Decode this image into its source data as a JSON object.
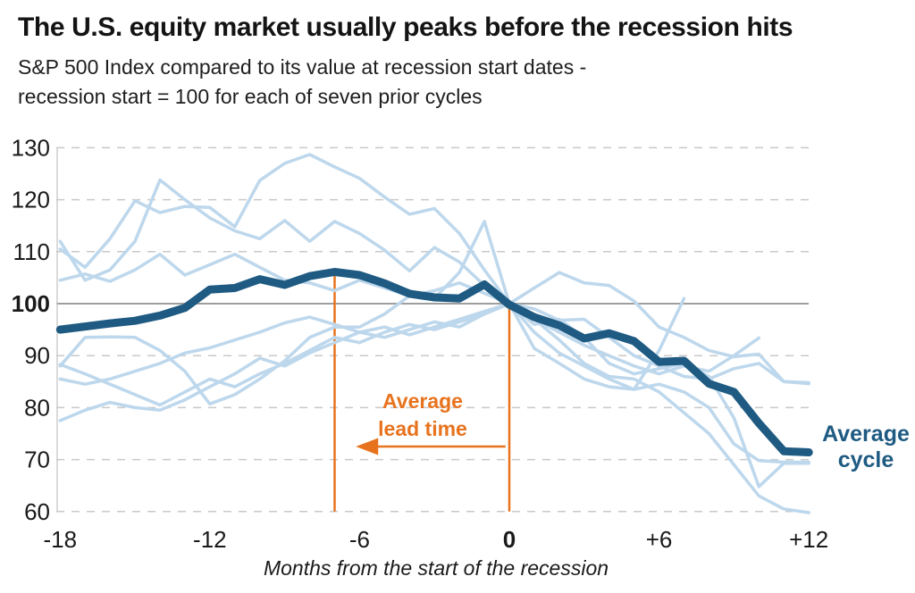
{
  "header": {
    "title": "The U.S. equity market usually peaks before the recession hits",
    "subtitle_line1": "S&P 500 Index compared to its value at recession start dates -",
    "subtitle_line2": "recession start = 100 for each of seven prior cycles"
  },
  "chart_data": {
    "type": "line",
    "x_axis_title": "Months from the start of the recession",
    "x_range": [
      -18,
      12
    ],
    "y_range": [
      60,
      130
    ],
    "grid": "dashed horizontal, solid reference line at 100",
    "legend_position": "inline right label",
    "reference_value": 100,
    "x_axis": {
      "ticks": [
        {
          "label": "-18",
          "value": -18,
          "bold": false
        },
        {
          "label": "-12",
          "value": -12,
          "bold": false
        },
        {
          "label": "-6",
          "value": -6,
          "bold": false
        },
        {
          "label": "0",
          "value": 0,
          "bold": true
        },
        {
          "label": "+6",
          "value": 6,
          "bold": false
        },
        {
          "label": "+12",
          "value": 12,
          "bold": false
        }
      ]
    },
    "y_axis": {
      "ticks": [
        {
          "label": "130",
          "value": 130,
          "bold": false
        },
        {
          "label": "120",
          "value": 120,
          "bold": false
        },
        {
          "label": "110",
          "value": 110,
          "bold": false
        },
        {
          "label": "100",
          "value": 100,
          "bold": true
        },
        {
          "label": "90",
          "value": 90,
          "bold": false
        },
        {
          "label": "80",
          "value": 80,
          "bold": false
        },
        {
          "label": "70",
          "value": 70,
          "bold": false
        },
        {
          "label": "60",
          "value": 60,
          "bold": false
        }
      ]
    },
    "series": [
      {
        "name": "cycle-1",
        "start_month": -18,
        "values": [
          110.5,
          107,
          112.5,
          119.8,
          117.5,
          118.7,
          118.5,
          114.8,
          123.7,
          127,
          128.7,
          126.3,
          124.1,
          120.5,
          117.2,
          118.3,
          113.5,
          106.5,
          100,
          97,
          93,
          88.5,
          86,
          85.5,
          83,
          79,
          75,
          69,
          63,
          60.5,
          59.8
        ]
      },
      {
        "name": "cycle-2",
        "start_month": -18,
        "values": [
          112,
          104.5,
          106.5,
          112,
          123.8,
          120,
          116.5,
          114,
          112.5,
          116,
          112,
          115.8,
          113.5,
          110.3,
          106.3,
          110.8,
          108,
          103.5,
          100,
          103,
          106,
          104,
          103.5,
          100.5,
          95.5,
          93.5,
          91,
          89.8,
          90.3,
          85,
          84.8
        ]
      },
      {
        "name": "cycle-3",
        "start_month": -18,
        "values": [
          104.5,
          105.7,
          104.3,
          106.5,
          109.5,
          105.5,
          107.5,
          109.5,
          107,
          104.5,
          104,
          102.5,
          104.5,
          103,
          101.5,
          102.5,
          104,
          102,
          100,
          99,
          96.8,
          97,
          93.5,
          90,
          88,
          86,
          85.5,
          87.5,
          88.5,
          85,
          84.6
        ]
      },
      {
        "name": "cycle-4",
        "start_month": -18,
        "values": [
          85.5,
          84.5,
          85.5,
          87,
          88.5,
          90.5,
          91.5,
          93,
          94.5,
          96.3,
          97.4,
          96,
          94.5,
          95.5,
          94,
          95.5,
          97,
          98.5,
          100,
          97,
          94.5,
          92,
          90,
          88,
          86.5,
          88,
          87,
          90,
          93.4
        ]
      },
      {
        "name": "cycle-5",
        "start_month": -18,
        "values": [
          88.3,
          86.5,
          84.5,
          82.5,
          80.5,
          83,
          85.5,
          84,
          86.5,
          88.5,
          91,
          93.5,
          92.5,
          94.5,
          96,
          95,
          96.5,
          98,
          100,
          94.5,
          90.5,
          88,
          85.5,
          83.5,
          84.5,
          83,
          80,
          73,
          69.8,
          69.5,
          69.5
        ]
      },
      {
        "name": "cycle-6",
        "start_month": -18,
        "values": [
          88,
          93.5,
          93.6,
          93.5,
          91,
          87,
          80.7,
          82.5,
          85.5,
          89,
          93.5,
          95.5,
          95.5,
          98,
          101.5,
          101,
          106,
          115.8,
          100,
          91.4,
          88.5,
          85.5,
          84,
          83.5,
          91,
          101
        ]
      },
      {
        "name": "cycle-7",
        "start_month": -18,
        "values": [
          77.5,
          79.5,
          81,
          80,
          79.5,
          81.5,
          84,
          86.5,
          89.5,
          88,
          90.5,
          92.5,
          94.5,
          93.5,
          95,
          96.5,
          95.5,
          98,
          100,
          96,
          97,
          93.5,
          88.5,
          86.5,
          87.5,
          88.5,
          86,
          78,
          64.8,
          69.3,
          69.3
        ]
      }
    ],
    "average": {
      "name": "Average cycle",
      "start_month": -18,
      "values": [
        95,
        95.6,
        96.2,
        96.7,
        97.7,
        99.2,
        102.7,
        103,
        104.7,
        103.6,
        105.3,
        106.1,
        105.5,
        103.9,
        101.9,
        101.2,
        101,
        103.7,
        99.8,
        97.4,
        95.8,
        93.3,
        94.3,
        92.8,
        88.8,
        89,
        84.6,
        83,
        77,
        71.6,
        71.4
      ]
    },
    "annotations": {
      "lead_time_label_line1": "Average",
      "lead_time_label_line2": "lead time",
      "average_cycle_label_line1": "Average",
      "average_cycle_label_line2": "cycle",
      "lead_time_line": {
        "month": -7,
        "from_value": 60,
        "to_value": 105.8
      },
      "recession_start_line": {
        "month": 0,
        "from_value": 60,
        "to_value": 99.6
      },
      "arrow": {
        "y_value": 72.5,
        "from_month": -0.15,
        "to_month": -6.15
      }
    },
    "colors": {
      "average_line": "#1E5A82",
      "cycle_lines": "#BDD7EC",
      "annotation": "#E8731E",
      "gridline": "#C9C9C9",
      "reference_line": "#9E9E9E",
      "axis_line": "#C6C6C6"
    }
  }
}
